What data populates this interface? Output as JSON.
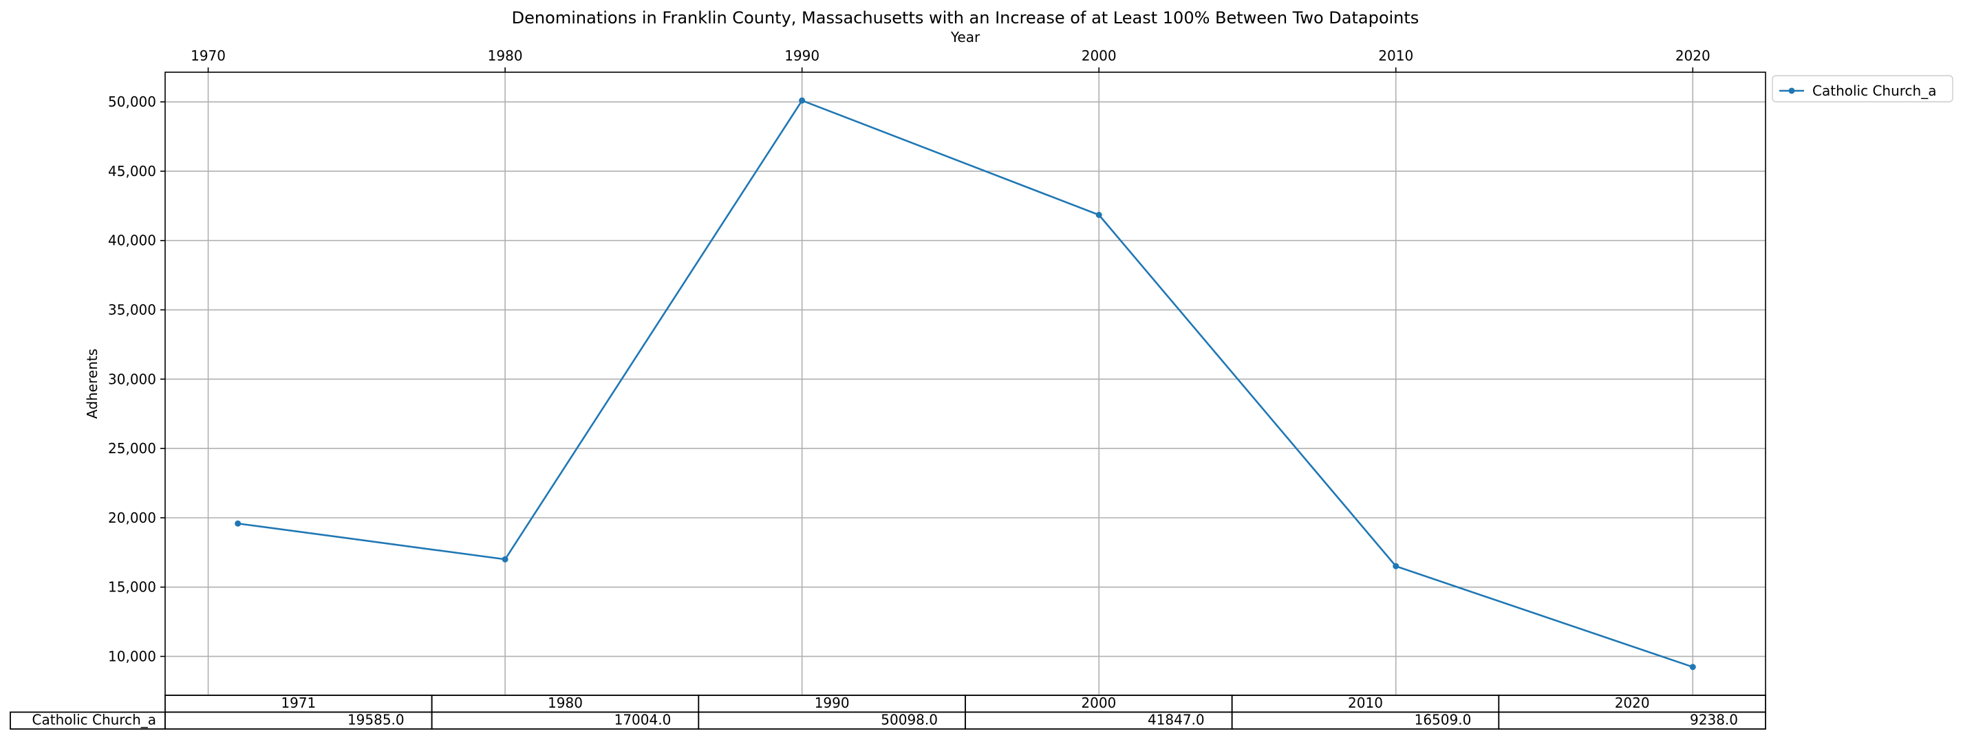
{
  "chart_data": {
    "type": "line",
    "title": "Denominations in Franklin County, Massachusetts with an Increase of at Least 100% Between Two Datapoints",
    "xlabel": "Year",
    "ylabel": "Adherents",
    "x": [
      1971,
      1980,
      1990,
      2000,
      2010,
      2020
    ],
    "x_ticks": [
      1970,
      1980,
      1990,
      2000,
      2010,
      2020
    ],
    "xlim": [
      1968.55,
      2022.45
    ],
    "x_axis_position": "top",
    "y_ticks": [
      10000,
      15000,
      20000,
      25000,
      30000,
      35000,
      40000,
      45000,
      50000
    ],
    "y_tick_labels": [
      "10,000",
      "15,000",
      "20,000",
      "25,000",
      "30,000",
      "35,000",
      "40,000",
      "45,000",
      "50,000"
    ],
    "ylim": [
      7195,
      52141
    ],
    "grid": true,
    "legend_position": "outside-top-right",
    "series": [
      {
        "name": "Catholic Church_a",
        "color": "#1f77b4",
        "marker": "circle",
        "values": [
          19585,
          17004,
          50098,
          41847,
          16509,
          9238
        ]
      }
    ],
    "table": {
      "col_labels": [
        "1971",
        "1980",
        "1990",
        "2000",
        "2010",
        "2020"
      ],
      "rows": [
        {
          "label": "Catholic Church_a",
          "cells": [
            "19585.0",
            "17004.0",
            "50098.0",
            "41847.0",
            "16509.0",
            "9238.0"
          ]
        }
      ]
    }
  }
}
